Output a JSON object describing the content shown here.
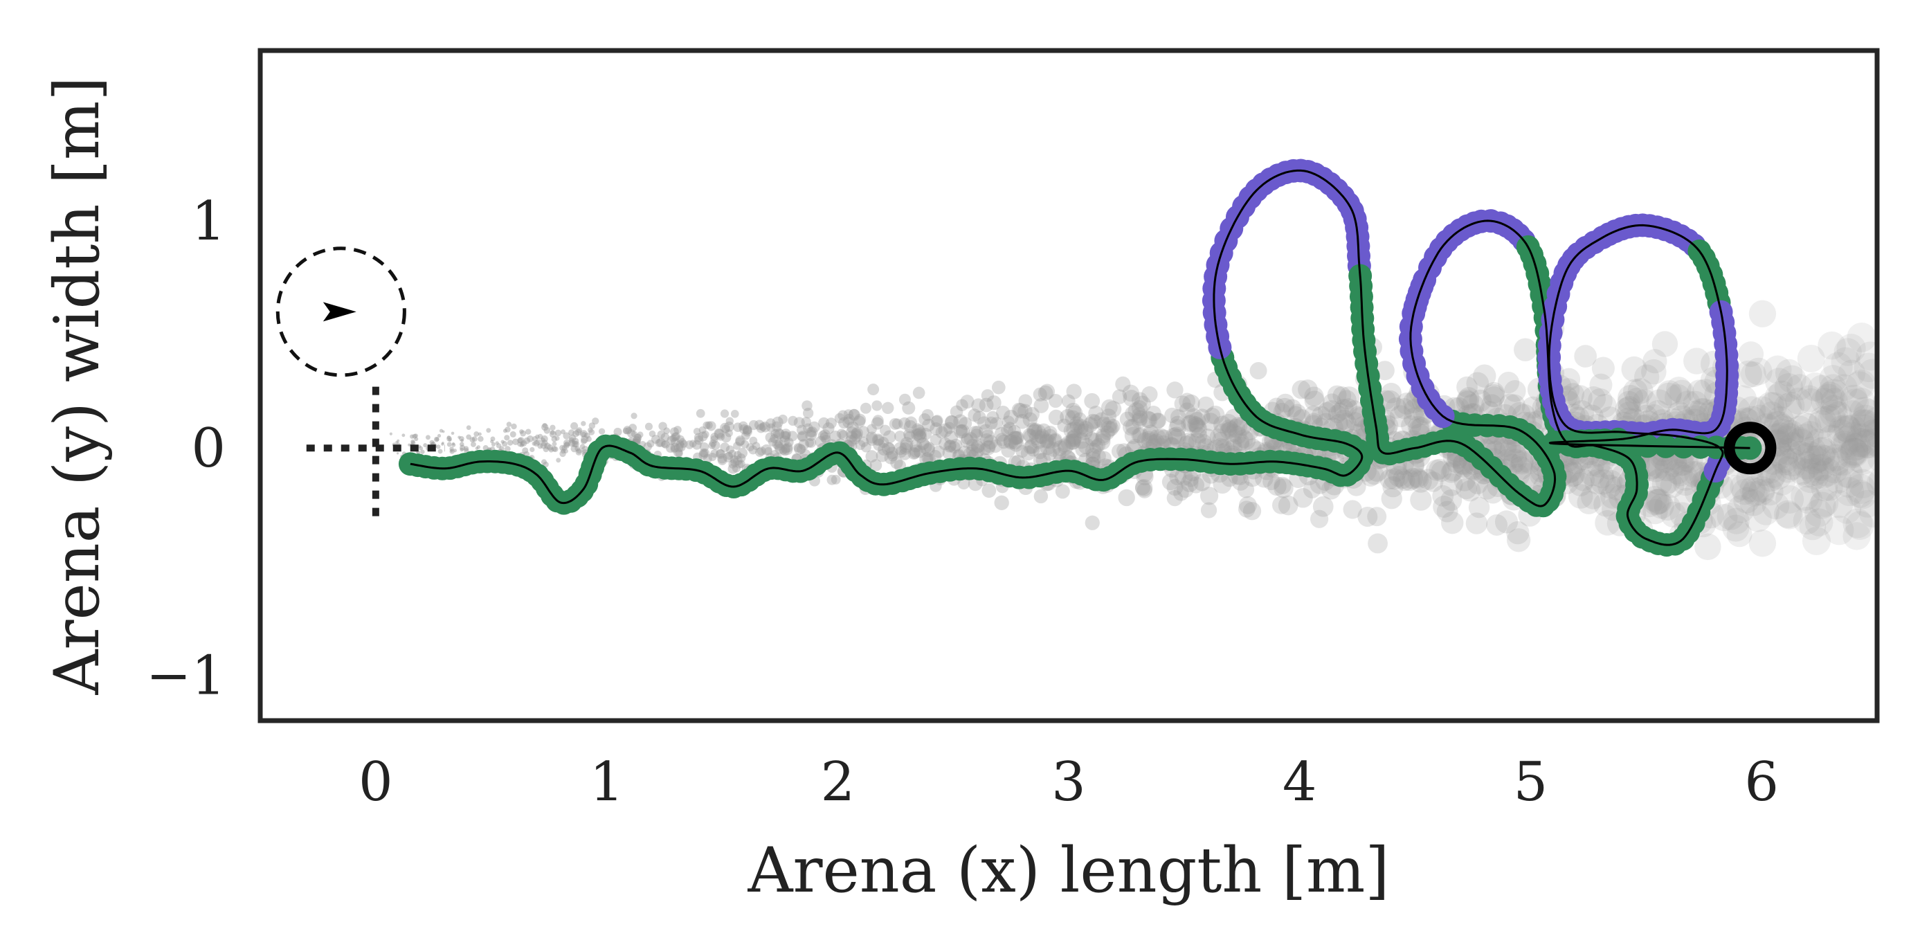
{
  "chart_data": {
    "type": "scatter",
    "title": "",
    "xlabel": "Arena (x) length [m]",
    "ylabel": "Arena (y) width [m]",
    "xlim": [
      -0.5,
      6.5
    ],
    "ylim": [
      -1.2,
      1.75
    ],
    "xticks": [
      0,
      1,
      2,
      3,
      4,
      5,
      6
    ],
    "yticks": [
      -1,
      0,
      1
    ],
    "xtick_labels": [
      "0",
      "1",
      "2",
      "3",
      "4",
      "5",
      "6"
    ],
    "ytick_labels": [
      "−1",
      "0",
      "1"
    ],
    "grid": false,
    "legend": "none",
    "colors": {
      "path_green": "#2e8b57",
      "path_purple": "#6a5acd",
      "trajectory_line": "#000000",
      "plume_particles": "#9a9a9a",
      "source_marker": "#000000",
      "axes_frame": "#262626",
      "axis_text": "#222222"
    },
    "source": {
      "x": 5.95,
      "y": 0.0
    },
    "agent_start": {
      "x": 0.15,
      "y": -0.07
    },
    "heading_indicator": {
      "x": -0.15,
      "y": 0.6,
      "radius": 0.28
    },
    "start_cross": {
      "x": 0.0,
      "y": 0.0,
      "x_range": [
        -0.3,
        0.3
      ],
      "y_range": [
        -0.3,
        0.3
      ]
    },
    "trajectory_control_points": [
      [
        0.15,
        -0.07
      ],
      [
        0.3,
        -0.09
      ],
      [
        0.45,
        -0.06
      ],
      [
        0.6,
        -0.07
      ],
      [
        0.7,
        -0.12
      ],
      [
        0.8,
        -0.24
      ],
      [
        0.9,
        -0.18
      ],
      [
        0.98,
        0.0
      ],
      [
        1.1,
        -0.02
      ],
      [
        1.2,
        -0.08
      ],
      [
        1.4,
        -0.1
      ],
      [
        1.55,
        -0.17
      ],
      [
        1.7,
        -0.09
      ],
      [
        1.85,
        -0.1
      ],
      [
        2.0,
        -0.02
      ],
      [
        2.1,
        -0.12
      ],
      [
        2.2,
        -0.16
      ],
      [
        2.4,
        -0.11
      ],
      [
        2.6,
        -0.09
      ],
      [
        2.8,
        -0.13
      ],
      [
        3.0,
        -0.1
      ],
      [
        3.15,
        -0.14
      ],
      [
        3.3,
        -0.06
      ],
      [
        3.5,
        -0.05
      ],
      [
        3.7,
        -0.07
      ],
      [
        3.9,
        -0.06
      ],
      [
        4.1,
        -0.09
      ],
      [
        4.2,
        -0.12
      ],
      [
        4.27,
        -0.04
      ],
      [
        4.2,
        0.02
      ],
      [
        4.0,
        0.06
      ],
      [
        3.8,
        0.15
      ],
      [
        3.66,
        0.42
      ],
      [
        3.64,
        0.78
      ],
      [
        3.8,
        1.12
      ],
      [
        4.02,
        1.22
      ],
      [
        4.22,
        1.06
      ],
      [
        4.26,
        0.78
      ],
      [
        4.28,
        0.45
      ],
      [
        4.33,
        0.1
      ],
      [
        4.36,
        -0.02
      ],
      [
        4.5,
        0.0
      ],
      [
        4.7,
        0.02
      ],
      [
        4.95,
        -0.2
      ],
      [
        5.06,
        -0.25
      ],
      [
        5.1,
        -0.1
      ],
      [
        4.95,
        0.08
      ],
      [
        4.62,
        0.14
      ],
      [
        4.48,
        0.48
      ],
      [
        4.6,
        0.86
      ],
      [
        4.8,
        1.0
      ],
      [
        4.98,
        0.9
      ],
      [
        5.06,
        0.6
      ],
      [
        5.09,
        0.2
      ],
      [
        5.16,
        0.02
      ],
      [
        5.28,
        0.01
      ],
      [
        5.43,
        -0.05
      ],
      [
        5.46,
        -0.18
      ],
      [
        5.42,
        -0.3
      ],
      [
        5.5,
        -0.4
      ],
      [
        5.66,
        -0.4
      ],
      [
        5.8,
        -0.1
      ],
      [
        5.82,
        0.0
      ],
      [
        5.65,
        0.05
      ],
      [
        5.4,
        0.07
      ],
      [
        5.15,
        0.1
      ],
      [
        5.08,
        0.4
      ],
      [
        5.15,
        0.77
      ],
      [
        5.3,
        0.92
      ],
      [
        5.5,
        0.98
      ],
      [
        5.72,
        0.88
      ],
      [
        5.82,
        0.62
      ],
      [
        5.85,
        0.3
      ],
      [
        5.8,
        0.08
      ],
      [
        5.6,
        0.08
      ],
      [
        5.4,
        0.04
      ],
      [
        5.1,
        0.02
      ],
      [
        5.95,
        0.0
      ]
    ],
    "purple_segments": [
      [
        32,
        37
      ],
      [
        47,
        51
      ],
      [
        61,
        70
      ],
      [
        71,
        75
      ]
    ]
  }
}
